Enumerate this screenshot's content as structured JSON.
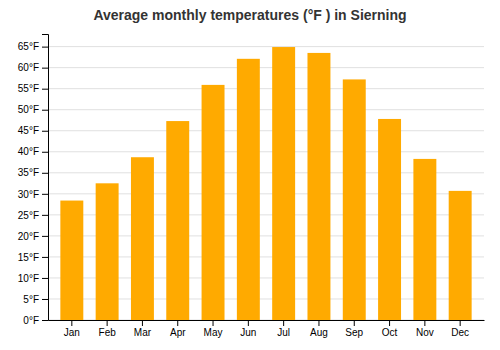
{
  "chart_data": {
    "type": "bar",
    "title": "Average monthly temperatures (°F ) in Sierning",
    "categories": [
      "Jan",
      "Feb",
      "Mar",
      "Apr",
      "May",
      "Jun",
      "Jul",
      "Aug",
      "Sep",
      "Oct",
      "Nov",
      "Dec"
    ],
    "values": [
      28.4,
      32.5,
      38.7,
      47.3,
      55.9,
      62.1,
      64.9,
      63.5,
      57.2,
      47.8,
      38.3,
      30.7
    ],
    "color": "#FFAA00",
    "ylim": [
      0,
      68
    ],
    "yticks": [
      {
        "value": 0,
        "label": "0°F"
      },
      {
        "value": 5,
        "label": "5°F"
      },
      {
        "value": 10,
        "label": "10°F"
      },
      {
        "value": 15,
        "label": "15°F"
      },
      {
        "value": 20,
        "label": "20°F"
      },
      {
        "value": 25,
        "label": "25°F"
      },
      {
        "value": 30,
        "label": "30°F"
      },
      {
        "value": 35,
        "label": "35°F"
      },
      {
        "value": 40,
        "label": "40°F"
      },
      {
        "value": 45,
        "label": "45°F"
      },
      {
        "value": 50,
        "label": "50°F"
      },
      {
        "value": 55,
        "label": "55°F"
      },
      {
        "value": 60,
        "label": "60°F"
      },
      {
        "value": 65,
        "label": "65°F"
      }
    ],
    "grid": true
  }
}
